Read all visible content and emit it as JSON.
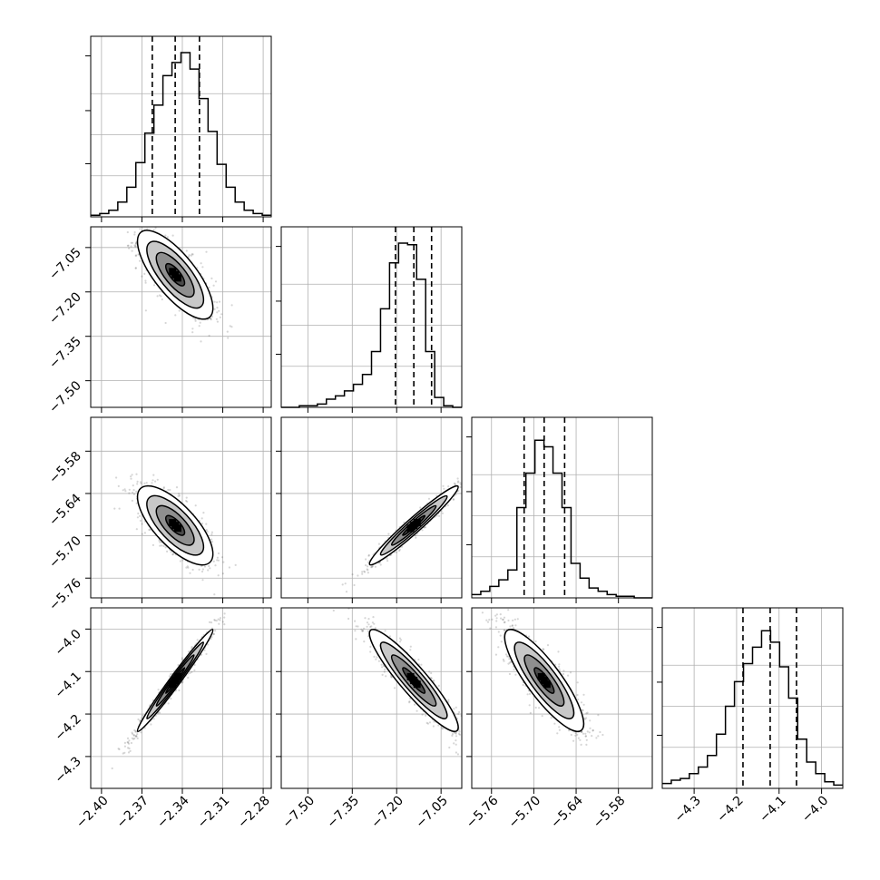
{
  "chart_data": {
    "type": "corner",
    "grid": true,
    "parameters": [
      {
        "range": [
          -2.408,
          -2.274
        ],
        "ticks": [
          -2.4,
          -2.37,
          -2.34,
          -2.31,
          -2.28
        ],
        "tick_labels": [
          "−2.40",
          "−2.37",
          "−2.34",
          "−2.31",
          "−2.28"
        ],
        "median": -2.3453,
        "q16": -2.3623,
        "q84": -2.3273,
        "sd": 0.014
      },
      {
        "range": [
          -7.59,
          -6.98
        ],
        "ticks": [
          -7.5,
          -7.35,
          -7.2,
          -7.05
        ],
        "tick_labels": [
          "−7.50",
          "−7.35",
          "−7.20",
          "−7.05"
        ],
        "median": -7.142,
        "q16": -7.204,
        "q84": -7.082,
        "sd": 0.075
      },
      {
        "range": [
          -5.788,
          -5.532
        ],
        "ticks": [
          -5.76,
          -5.7,
          -5.64,
          -5.58
        ],
        "tick_labels": [
          "−5.76",
          "−5.70",
          "−5.64",
          "−5.58"
        ],
        "median": -5.6853,
        "q16": -5.7137,
        "q84": -5.6563,
        "sd": 0.028
      },
      {
        "range": [
          -4.375,
          -3.95
        ],
        "ticks": [
          -4.3,
          -4.2,
          -4.1,
          -4.0
        ],
        "tick_labels": [
          "−4.3",
          "−4.2",
          "−4.1",
          "−4.0"
        ],
        "median": -4.121,
        "q16": -4.185,
        "q84": -4.059,
        "sd": 0.06
      }
    ],
    "histograms": [
      {
        "param": 0,
        "bin_edges": [
          -2.408,
          -2.4013,
          -2.3946,
          -2.3879,
          -2.3812,
          -2.3745,
          -2.3678,
          -2.3611,
          -2.3544,
          -2.3477,
          -2.341,
          -2.3343,
          -2.3276,
          -2.3209,
          -2.3142,
          -2.3075,
          -2.3008,
          -2.2941,
          -2.2874,
          -2.2807,
          -2.274
        ],
        "counts": [
          0.01,
          0.02,
          0.04,
          0.09,
          0.18,
          0.33,
          0.51,
          0.68,
          0.86,
          0.94,
          1.0,
          0.9,
          0.72,
          0.52,
          0.32,
          0.18,
          0.09,
          0.04,
          0.02,
          0.01
        ]
      },
      {
        "param": 1,
        "bin_edges": [
          -7.59,
          -7.5595,
          -7.529,
          -7.4985,
          -7.468,
          -7.4375,
          -7.407,
          -7.3765,
          -7.346,
          -7.3155,
          -7.285,
          -7.2545,
          -7.224,
          -7.1935,
          -7.163,
          -7.1325,
          -7.102,
          -7.0715,
          -7.041,
          -7.0105,
          -6.98
        ],
        "counts": [
          0.0,
          0.0,
          0.01,
          0.01,
          0.02,
          0.05,
          0.07,
          0.1,
          0.14,
          0.2,
          0.34,
          0.6,
          0.88,
          1.0,
          0.99,
          0.78,
          0.34,
          0.06,
          0.01,
          0.0
        ]
      },
      {
        "param": 2,
        "bin_edges": [
          -5.788,
          -5.7752,
          -5.7624,
          -5.7496,
          -5.7368,
          -5.724,
          -5.7112,
          -5.6984,
          -5.6856,
          -5.6728,
          -5.66,
          -5.6472,
          -5.6344,
          -5.6216,
          -5.6088,
          -5.596,
          -5.5832,
          -5.5704,
          -5.5576,
          -5.5448,
          -5.532
        ],
        "counts": [
          0.02,
          0.04,
          0.07,
          0.11,
          0.17,
          0.55,
          0.76,
          0.96,
          0.92,
          0.76,
          0.55,
          0.21,
          0.12,
          0.06,
          0.04,
          0.02,
          0.01,
          0.01,
          0.0,
          0.0
        ]
      },
      {
        "param": 3,
        "bin_edges": [
          -4.375,
          -4.35375,
          -4.3325,
          -4.31125,
          -4.29,
          -4.26875,
          -4.2475,
          -4.22625,
          -4.205,
          -4.18375,
          -4.1625,
          -4.14125,
          -4.12,
          -4.09875,
          -4.0775,
          -4.05625,
          -4.035,
          -4.01375,
          -3.9925,
          -3.97125,
          -3.95
        ],
        "counts": [
          0.03,
          0.05,
          0.06,
          0.09,
          0.13,
          0.2,
          0.33,
          0.5,
          0.65,
          0.76,
          0.86,
          0.96,
          0.89,
          0.74,
          0.55,
          0.3,
          0.16,
          0.09,
          0.04,
          0.02
        ]
      }
    ],
    "scatter_pairs": [
      {
        "x_param": 0,
        "y_param": 1,
        "rho": -0.75
      },
      {
        "x_param": 0,
        "y_param": 2,
        "rho": -0.72
      },
      {
        "x_param": 1,
        "y_param": 2,
        "rho": 0.97
      },
      {
        "x_param": 0,
        "y_param": 3,
        "rho": 0.985
      },
      {
        "x_param": 1,
        "y_param": 3,
        "rho": -0.92
      },
      {
        "x_param": 2,
        "y_param": 3,
        "rho": -0.85
      }
    ],
    "contour_levels_sigma": [
      0.5,
      1.0,
      1.5,
      2.0
    ],
    "colors": {
      "line": "#000000",
      "grid": "#b0b0b0",
      "scatter": "#444444",
      "fill_levels": [
        "#ffffff",
        "#c8c8c8",
        "#8f8f8f",
        "#4a4a4a"
      ]
    }
  }
}
